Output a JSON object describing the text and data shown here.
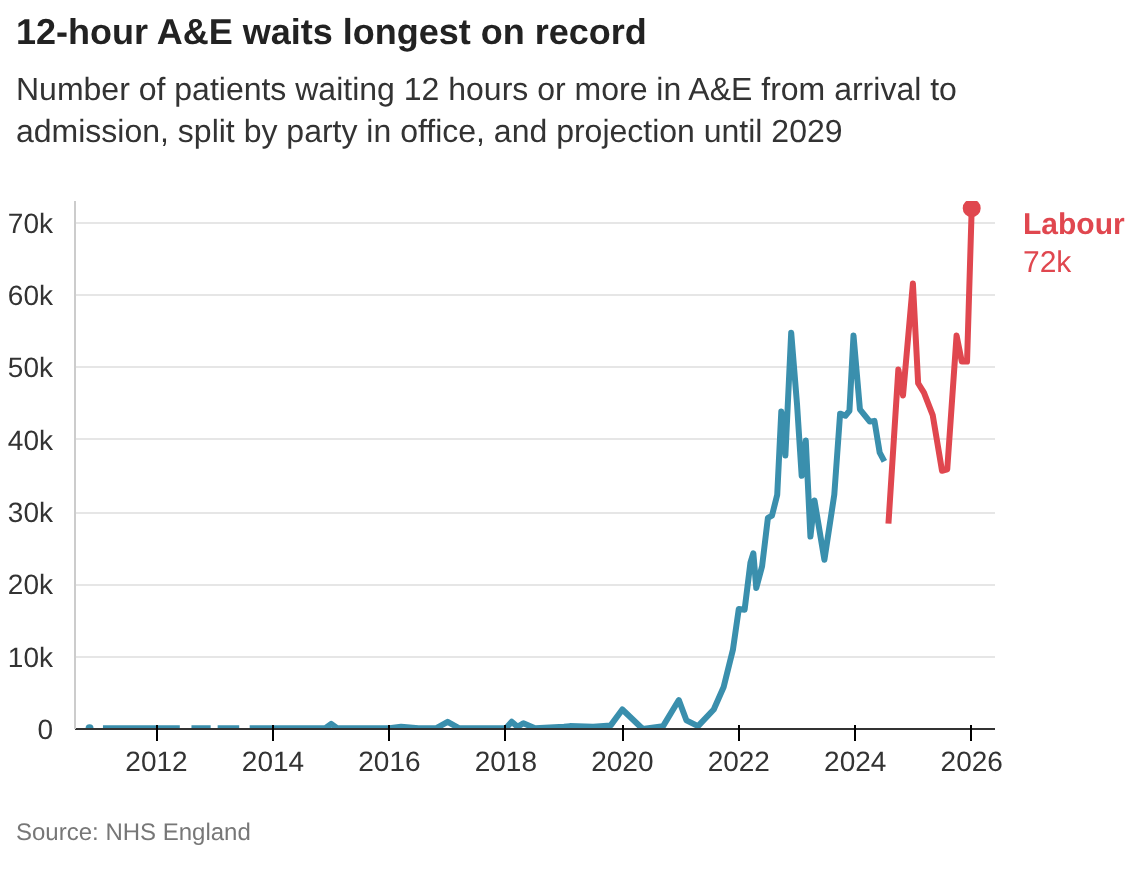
{
  "chart_data": {
    "type": "line",
    "title": "12-hour A&E waits longest on record",
    "subtitle": "Number of patients waiting 12 hours or more in A&E from arrival to admission, split by party in office, and projection until 2029",
    "annotations": [
      "Source: NHS England",
      {
        "text": "72k",
        "x": 2026.0,
        "y": 72000
      }
    ],
    "series": [
      {
        "color": "#3a8fad",
        "x": [
          2010.85,
          2010.9,
          2011.08,
          2011.5,
          2012.0,
          2012.4,
          2012.5,
          2012.6,
          2012.93,
          2013.0,
          2013.05,
          2013.42,
          2013.5,
          2013.6,
          2014.0,
          2014.5,
          2014.9,
          2015.0,
          2015.1,
          2015.5,
          2016.0,
          2016.2,
          2016.5,
          2016.8,
          2017.0,
          2017.2,
          2017.6,
          2018.0,
          2018.1,
          2018.2,
          2018.3,
          2018.5,
          2019.0,
          2019.1,
          2019.5,
          2019.8,
          2020.0,
          2020.35,
          2020.7,
          2020.97,
          2021.1,
          2021.3,
          2021.57,
          2021.74,
          2021.9,
          2022.0,
          2022.1,
          2022.2,
          2022.25,
          2022.3,
          2022.4,
          2022.5,
          2022.57,
          2022.66,
          2022.73,
          2022.8,
          2022.9,
          2023.0,
          2023.08,
          2023.15,
          2023.23,
          2023.3,
          2023.47,
          2023.64,
          2023.74,
          2023.83,
          2023.9,
          2023.97,
          2024.08,
          2024.25,
          2024.33,
          2024.42,
          2024.5
        ],
        "values": [
          100,
          null,
          100,
          100,
          100,
          100,
          null,
          100,
          100,
          null,
          100,
          100,
          null,
          100,
          100,
          100,
          100,
          700,
          100,
          100,
          100,
          300,
          100,
          100,
          1000,
          100,
          100,
          100,
          1000,
          300,
          800,
          100,
          300,
          400,
          300,
          500,
          2700,
          0,
          400,
          4000,
          1200,
          400,
          2700,
          5800,
          11000,
          16600,
          16500,
          23000,
          24300,
          19500,
          22500,
          29200,
          29500,
          32400,
          43900,
          37800,
          54800,
          44900,
          35000,
          39900,
          26600,
          31600,
          23400,
          32400,
          43600,
          43300,
          44000,
          54400,
          44200,
          42500,
          42600,
          38200,
          37000
        ]
      },
      {
        "name": "Labour",
        "color": "#e0474f",
        "x": [
          2024.57,
          2024.74,
          2024.82,
          2024.99,
          2025.08,
          2025.18,
          2025.33,
          2025.49,
          2025.58,
          2025.74,
          2025.83,
          2025.92,
          2026.0
        ],
        "values": [
          28400,
          49700,
          46100,
          61600,
          47800,
          46500,
          43400,
          35700,
          35900,
          54400,
          50800,
          50800,
          72000
        ]
      }
    ],
    "xlim": [
      2010.6,
      2026.4
    ],
    "xticks": [
      2012,
      2014,
      2016,
      2018,
      2020,
      2022,
      2024,
      2026
    ],
    "ylim": [
      0,
      73000
    ],
    "yticks": [
      {
        "value": 0,
        "label": "0"
      },
      {
        "value": 10000,
        "label": "10k"
      },
      {
        "value": 20000,
        "label": "20k"
      },
      {
        "value": 30000,
        "label": "30k"
      },
      {
        "value": 40000,
        "label": "40k"
      },
      {
        "value": 50000,
        "label": "50k"
      },
      {
        "value": 60000,
        "label": "60k"
      },
      {
        "value": 70000,
        "label": "70k"
      }
    ],
    "grid": "y",
    "line_style": "solid"
  }
}
